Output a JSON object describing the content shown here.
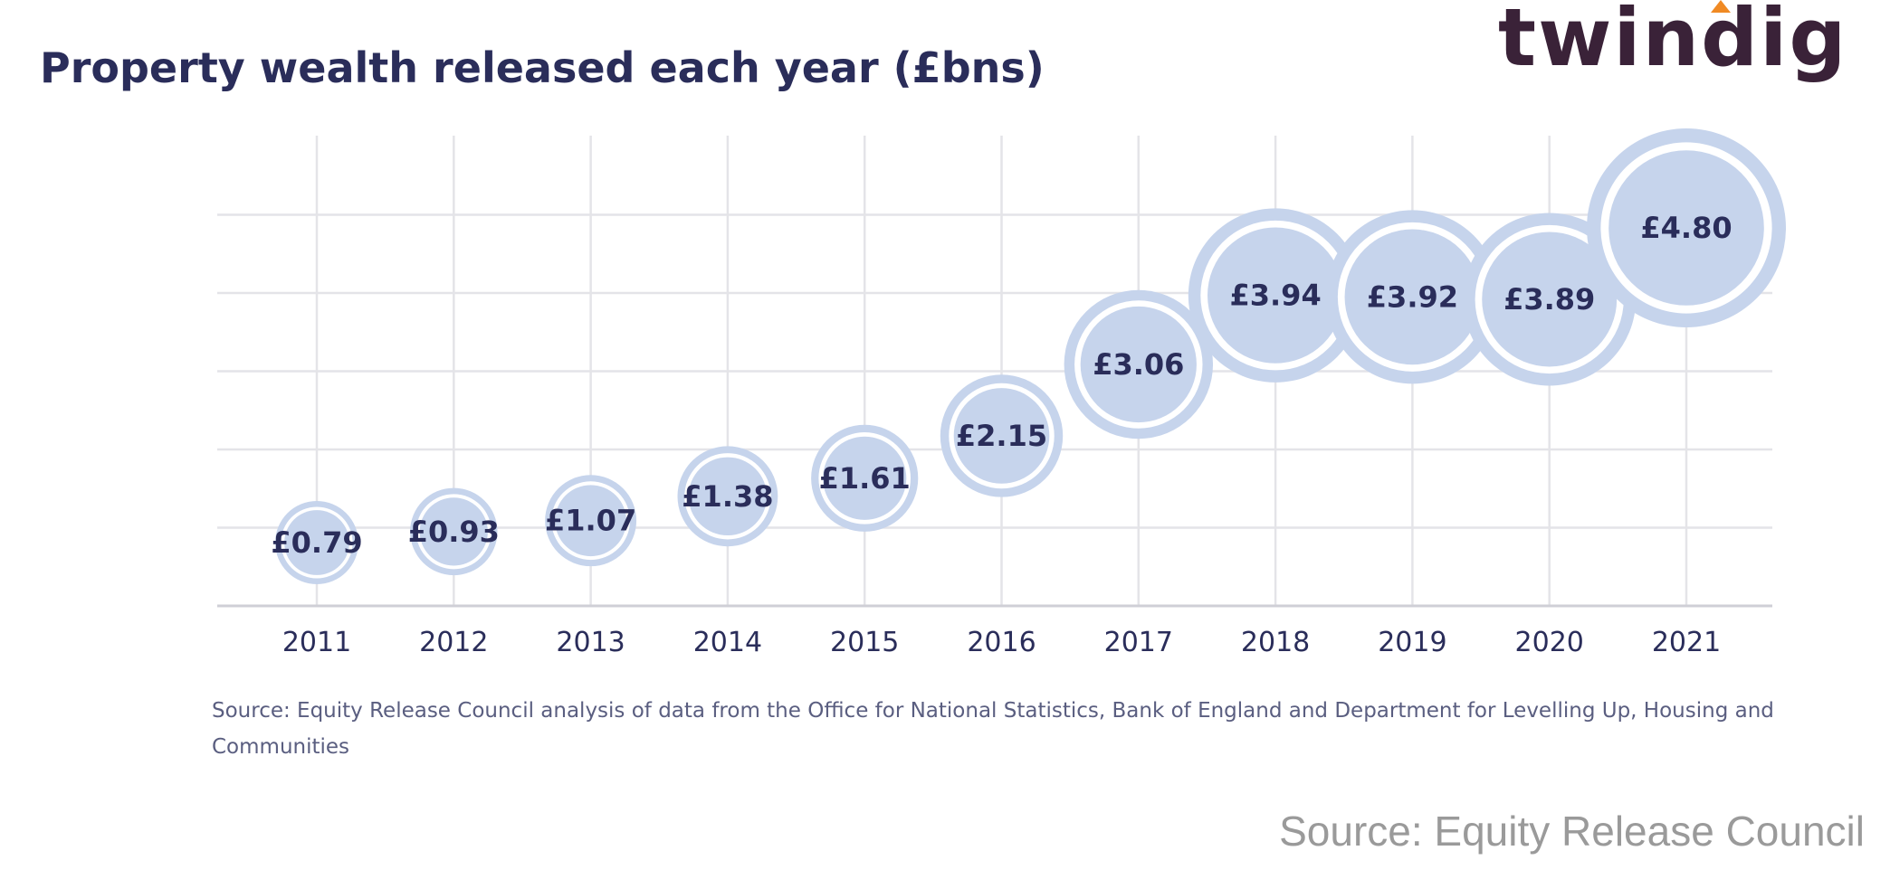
{
  "title": "Property wealth released each year (£bns)",
  "logo": {
    "text": "twindig",
    "accent_color": "#f08a24",
    "text_color": "#3a2238"
  },
  "chart_data": {
    "type": "scatter",
    "subtype": "bubble",
    "categories": [
      "2011",
      "2012",
      "2013",
      "2014",
      "2015",
      "2016",
      "2017",
      "2018",
      "2019",
      "2020",
      "2021"
    ],
    "values": [
      0.79,
      0.93,
      1.07,
      1.38,
      1.61,
      2.15,
      3.06,
      3.94,
      3.92,
      3.89,
      4.8
    ],
    "value_labels": [
      "£0.79",
      "£0.93",
      "£1.07",
      "£1.38",
      "£1.61",
      "£2.15",
      "£3.06",
      "£3.94",
      "£3.92",
      "£3.89",
      "£4.80"
    ],
    "ylim": [
      0,
      6
    ],
    "grid": true,
    "y_tick_labels_shown": false,
    "bubble_color": "#c6d4ec",
    "label_color": "#2a2d5a"
  },
  "source_note": "Source: Equity Release Council analysis of data from the Office for National Statistics, Bank of England and Department for Levelling Up, Housing and Communities",
  "source_main": "Source: Equity Release Council"
}
